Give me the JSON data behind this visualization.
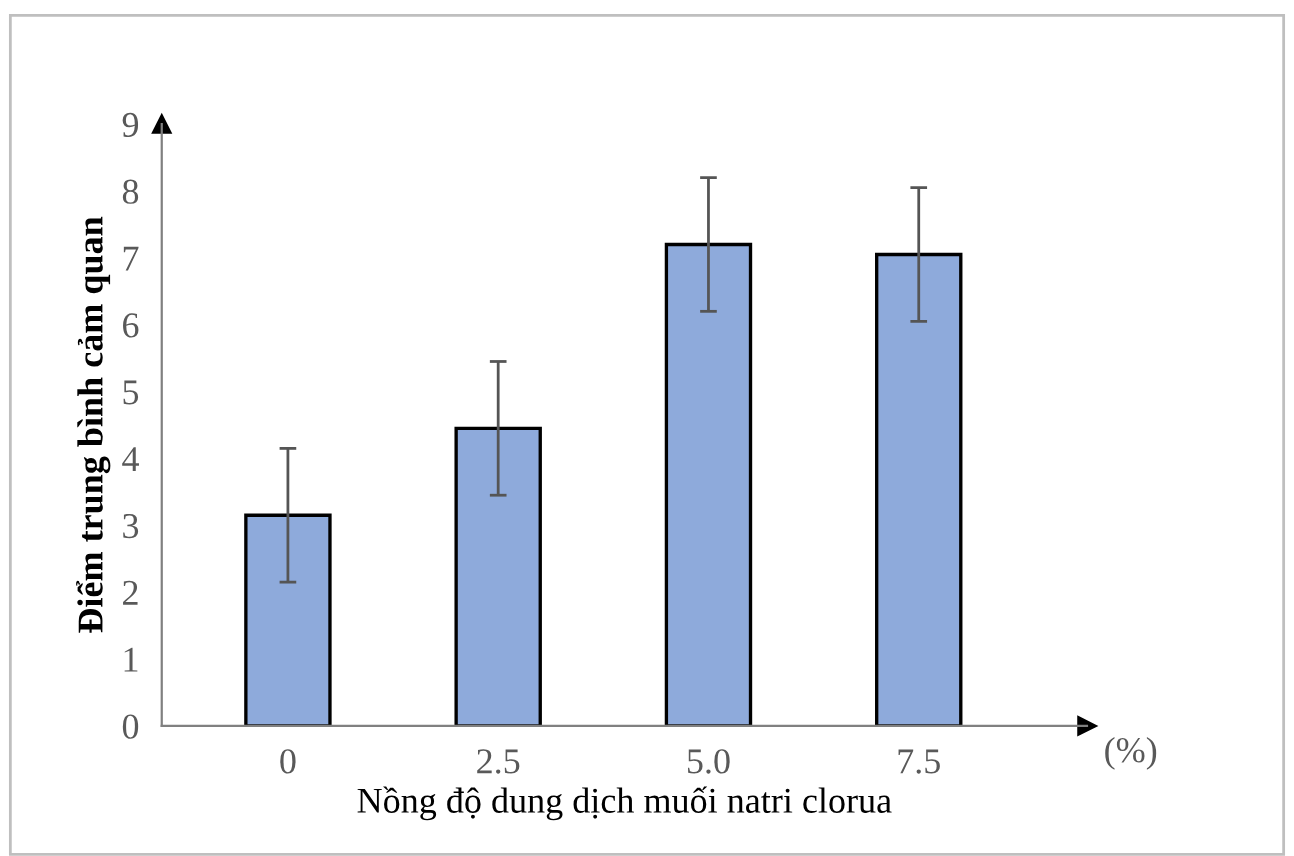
{
  "chart_data": {
    "type": "bar",
    "xlabel": "Nồng độ dung dịch muối natri clorua",
    "ylabel": "Điểm trung bình cảm quan",
    "categories": [
      "0",
      "2.5",
      "5.0",
      "7.5"
    ],
    "values": [
      3.15,
      4.45,
      7.2,
      7.05
    ],
    "errors": [
      1,
      1,
      1,
      1
    ],
    "color": "#8eaadb",
    "ylim": [
      0,
      9
    ],
    "yticks": [
      0,
      1,
      2,
      3,
      4,
      5,
      6,
      7,
      8,
      9
    ],
    "grid": false,
    "annotations": [
      "(%)"
    ]
  }
}
